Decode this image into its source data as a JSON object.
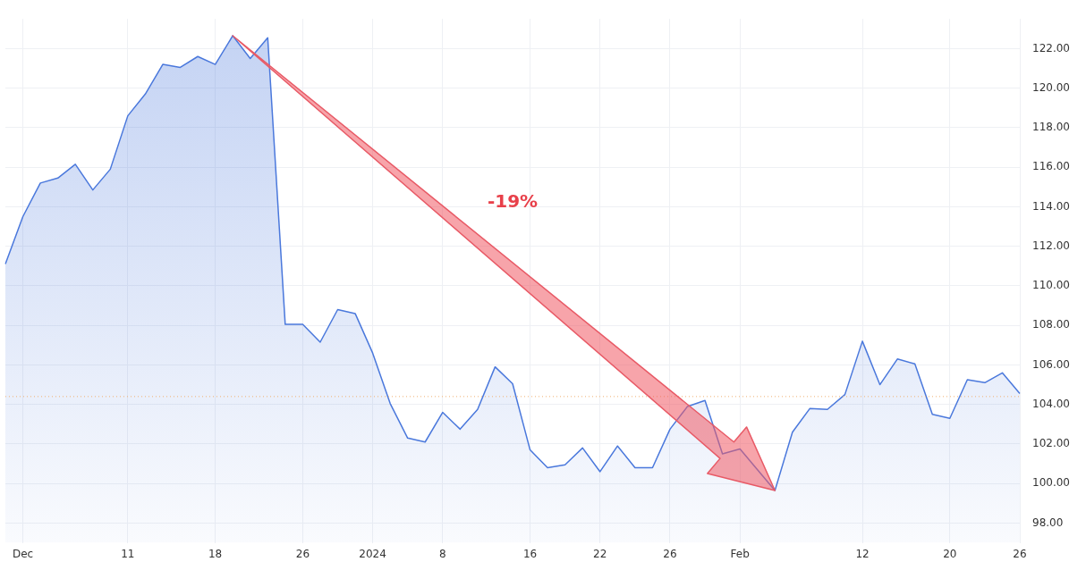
{
  "chart_data": {
    "type": "area",
    "categories": [
      null,
      "Dec",
      null,
      null,
      null,
      null,
      null,
      "11",
      null,
      null,
      null,
      null,
      "18",
      null,
      null,
      null,
      null,
      "26",
      null,
      null,
      null,
      "2024",
      null,
      null,
      null,
      "8",
      null,
      null,
      null,
      null,
      "16",
      null,
      null,
      null,
      "22",
      null,
      null,
      null,
      "26",
      null,
      null,
      null,
      "Feb",
      null,
      null,
      null,
      null,
      null,
      null,
      "12",
      null,
      null,
      null,
      null,
      "20",
      null,
      null,
      null,
      "26"
    ],
    "series": [
      {
        "color": "#4a78dc",
        "values": [
          111.1,
          113.5,
          115.2,
          115.45,
          116.15,
          114.85,
          115.9,
          118.6,
          119.7,
          121.2,
          121.05,
          121.6,
          121.2,
          122.65,
          121.5,
          122.55,
          108.05,
          108.05,
          107.15,
          108.8,
          108.6,
          106.6,
          104.05,
          102.3,
          102.1,
          103.6,
          102.75,
          103.75,
          105.9,
          105.05,
          101.7,
          100.8,
          100.95,
          101.8,
          100.6,
          101.9,
          100.8,
          100.8,
          102.75,
          103.9,
          104.2,
          101.5,
          101.75,
          100.7,
          99.65,
          102.6,
          103.8,
          103.75,
          104.5,
          107.2,
          105.0,
          106.3,
          106.05,
          103.5,
          103.3,
          105.25,
          105.1,
          105.6,
          104.55
        ]
      }
    ],
    "ylim": [
      97,
      123.5
    ],
    "yticks": [
      {
        "value": 98,
        "label": "98.00"
      },
      {
        "value": 100,
        "label": "100.00"
      },
      {
        "value": 102,
        "label": "102.00"
      },
      {
        "value": 104,
        "label": "104.00"
      },
      {
        "value": 106,
        "label": "106.00"
      },
      {
        "value": 108,
        "label": "108.00"
      },
      {
        "value": 110,
        "label": "110.00"
      },
      {
        "value": 112,
        "label": "112.00"
      },
      {
        "value": 114,
        "label": "114.00"
      },
      {
        "value": 116,
        "label": "116.00"
      },
      {
        "value": 118,
        "label": "118.00"
      },
      {
        "value": 120,
        "label": "120.00"
      },
      {
        "value": 122,
        "label": "122.00"
      }
    ],
    "ref_lines": [
      {
        "axis": "y",
        "value": 104.4,
        "color": "#f0b070",
        "line_style": "dotted"
      }
    ],
    "annotations": [
      "-19%"
    ],
    "grid": true
  }
}
